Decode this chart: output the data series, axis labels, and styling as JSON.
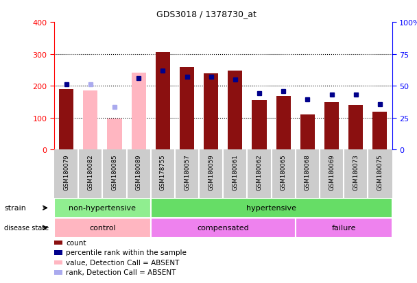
{
  "title": "GDS3018 / 1378730_at",
  "samples": [
    "GSM180079",
    "GSM180082",
    "GSM180085",
    "GSM180089",
    "GSM178755",
    "GSM180057",
    "GSM180059",
    "GSM180061",
    "GSM180062",
    "GSM180065",
    "GSM180068",
    "GSM180069",
    "GSM180073",
    "GSM180075"
  ],
  "count_values": [
    190,
    null,
    null,
    null,
    305,
    258,
    240,
    247,
    155,
    168,
    110,
    148,
    140,
    118
  ],
  "count_absent": [
    null,
    185,
    98,
    242,
    null,
    null,
    null,
    null,
    null,
    null,
    null,
    null,
    null,
    null
  ],
  "percentile_values": [
    205,
    null,
    null,
    225,
    248,
    228,
    228,
    220,
    178,
    183,
    158,
    172,
    172,
    143
  ],
  "percentile_absent": [
    null,
    205,
    135,
    null,
    null,
    null,
    null,
    null,
    null,
    null,
    null,
    null,
    null,
    null
  ],
  "strain_groups": [
    {
      "label": "non-hypertensive",
      "start": 0,
      "end": 4,
      "color": "#90EE90"
    },
    {
      "label": "hypertensive",
      "start": 4,
      "end": 14,
      "color": "#66DD66"
    }
  ],
  "disease_groups": [
    {
      "label": "control",
      "start": 0,
      "end": 4,
      "color": "#FFB6C1"
    },
    {
      "label": "compensated",
      "start": 4,
      "end": 10,
      "color": "#EE82EE"
    },
    {
      "label": "failure",
      "start": 10,
      "end": 14,
      "color": "#EE82EE"
    }
  ],
  "ylim_left": [
    0,
    400
  ],
  "yticks_left": [
    0,
    100,
    200,
    300,
    400
  ],
  "yticks_right_labels": [
    "0",
    "25",
    "50",
    "75",
    "100%"
  ],
  "yticks_right_vals": [
    0,
    25,
    50,
    75,
    100
  ],
  "bar_color_present": "#8B1010",
  "bar_color_absent": "#FFB6C1",
  "dot_color_present": "#00008B",
  "dot_color_absent": "#AAAAEE",
  "xticklabel_bg": "#CCCCCC",
  "grid_color": "#000000"
}
